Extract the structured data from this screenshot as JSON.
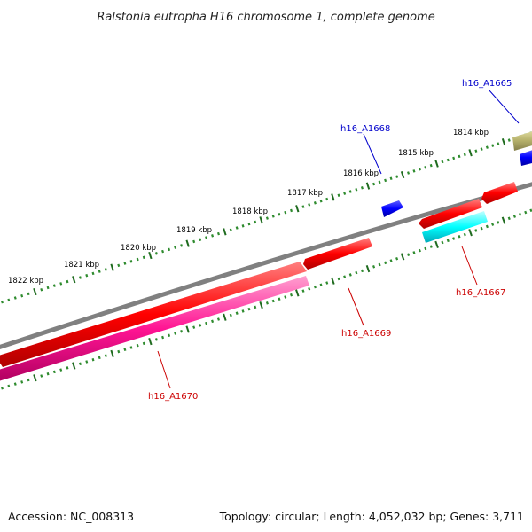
{
  "title": "Ralstonia eutropha H16 chromosome 1, complete genome",
  "footer": {
    "accession": "Accession: NC_008313",
    "summary": "Topology: circular; Length: 4,052,032 bp; Genes: 3,711"
  },
  "colors": {
    "backbone": "#808080",
    "tick_minor": "#2e8b2e",
    "tick_major": "#1f6b1f",
    "gene_red": "#ff0000",
    "gene_magenta": "#ff1493",
    "gene_cyan": "#00ffff",
    "gene_blue": "#0000ff",
    "gene_olive": "#b5b06a",
    "label_red": "#cc0000",
    "label_blue": "#0000cc"
  },
  "scale_labels": [
    "1814 kbp",
    "1815 kbp",
    "1816 kbp",
    "1817 kbp",
    "1818 kbp",
    "1819 kbp",
    "1820 kbp",
    "1821 kbp",
    "1822 kbp"
  ],
  "gene_labels": [
    {
      "name": "h16_A1665",
      "color": "blue"
    },
    {
      "name": "h16_A1668",
      "color": "blue"
    },
    {
      "name": "h16_A1667",
      "color": "red"
    },
    {
      "name": "h16_A1669",
      "color": "red"
    },
    {
      "name": "h16_A1670",
      "color": "red"
    }
  ]
}
